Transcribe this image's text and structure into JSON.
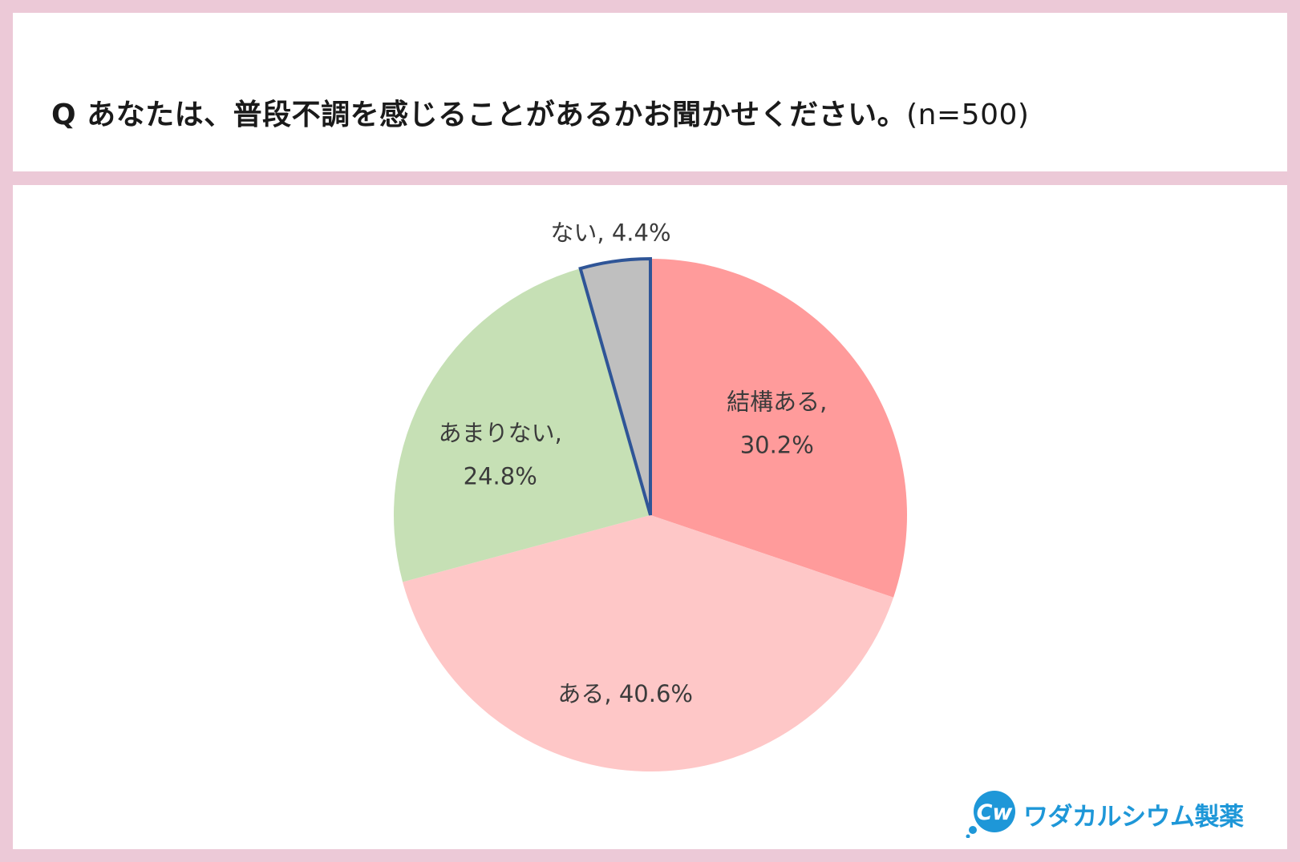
{
  "title": {
    "question": "Q あなたは、普段不調を感じることがあるかお聞かせください。",
    "sample": "(n=500)"
  },
  "chart_data": {
    "type": "pie",
    "start_angle_deg": 0,
    "direction": "clockwise",
    "slices": [
      {
        "name": "結構ある",
        "value": 30.2,
        "label_lines": [
          "結構ある,",
          "30.2%"
        ],
        "color": "#ff9b9b",
        "outline": null
      },
      {
        "name": "ある",
        "value": 40.6,
        "label_lines": [
          "ある, 40.6%"
        ],
        "color": "#fec7c7",
        "outline": null
      },
      {
        "name": "あまりない",
        "value": 24.8,
        "label_lines": [
          "あまりない,",
          "24.8%"
        ],
        "color": "#c6e0b5",
        "outline": null
      },
      {
        "name": "ない",
        "value": 4.4,
        "label_lines": [
          "ない, 4.4%"
        ],
        "color": "#bfbfbf",
        "outline": "#2f5597"
      }
    ]
  },
  "brand": {
    "name": "ワダカルシウム製薬",
    "logo_letters": "Cw",
    "color": "#1e97d8"
  }
}
